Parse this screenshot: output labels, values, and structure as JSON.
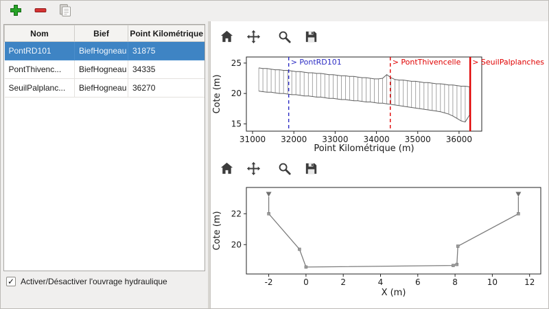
{
  "toolbar": {
    "buttons": [
      {
        "name": "add",
        "icon": "plus-icon"
      },
      {
        "name": "remove",
        "icon": "minus-icon"
      },
      {
        "name": "paste",
        "icon": "paste-icon"
      }
    ]
  },
  "table": {
    "columns": [
      "Nom",
      "Bief",
      "Point Kilométrique"
    ],
    "rows": [
      {
        "nom": "PontRD101",
        "bief": "BiefHogneau",
        "pk": "31875"
      },
      {
        "nom": "PontThivenc...",
        "bief": "BiefHogneau",
        "pk": "34335"
      },
      {
        "nom": "SeuilPalplanc...",
        "bief": "BiefHogneau",
        "pk": "36270"
      }
    ],
    "selected_row": 0,
    "selection_color": "#3e84c4"
  },
  "checkbox": {
    "label": "Activer/Désactiver l'ouvrage hydraulique",
    "checked": true
  },
  "plot_toolbar_icons": [
    "home-icon",
    "pan-icon",
    "zoom-icon",
    "save-icon"
  ],
  "chart_data": [
    {
      "type": "line",
      "title": "",
      "xlabel": "Point Kilométrique (m)",
      "ylabel": "Cote (m)",
      "xlim": [
        30850,
        36550
      ],
      "ylim": [
        13.8,
        26.0
      ],
      "xticks": [
        31000,
        32000,
        33000,
        34000,
        35000,
        36000
      ],
      "yticks": [
        15,
        20,
        25
      ],
      "grid": false,
      "sections": {
        "x": [
          31150,
          31250,
          31350,
          31450,
          31550,
          31650,
          31750,
          31850,
          31950,
          32050,
          32150,
          32250,
          32350,
          32450,
          32550,
          32650,
          32750,
          32850,
          32950,
          33050,
          33150,
          33250,
          33350,
          33450,
          33550,
          33650,
          33750,
          33850,
          33950,
          34050,
          34150,
          34250,
          34350,
          34450,
          34550,
          34650,
          34750,
          34850,
          34950,
          35050,
          35150,
          35250,
          35350,
          35450,
          35550,
          35650,
          35750,
          35850,
          35950,
          36050,
          36150,
          36250
        ],
        "top": [
          24.2,
          24.1,
          24.1,
          24.0,
          23.9,
          23.9,
          23.8,
          23.8,
          23.7,
          23.6,
          23.6,
          23.5,
          23.4,
          23.4,
          23.3,
          23.3,
          23.2,
          23.1,
          23.1,
          23.0,
          22.9,
          22.9,
          22.8,
          22.8,
          22.7,
          22.6,
          22.6,
          22.5,
          22.4,
          22.4,
          22.5,
          23.1,
          22.6,
          22.3,
          22.2,
          22.2,
          22.1,
          22.0,
          22.0,
          21.9,
          21.8,
          21.8,
          21.7,
          21.6,
          21.6,
          21.5,
          21.4,
          21.4,
          21.3,
          21.2,
          21.2,
          21.1
        ],
        "bottom": [
          20.4,
          20.3,
          20.2,
          20.2,
          20.1,
          20.0,
          20.0,
          19.9,
          19.8,
          19.8,
          19.7,
          19.6,
          19.6,
          19.5,
          19.4,
          19.4,
          19.3,
          19.2,
          19.2,
          19.1,
          19.0,
          19.0,
          18.9,
          18.8,
          18.8,
          18.7,
          18.6,
          18.6,
          18.5,
          18.4,
          18.4,
          18.3,
          18.2,
          18.1,
          18.0,
          17.9,
          17.8,
          17.7,
          17.6,
          17.5,
          17.4,
          17.3,
          17.2,
          17.1,
          17.0,
          16.8,
          16.6,
          16.3,
          15.9,
          15.5,
          15.3,
          16.4
        ]
      },
      "markers": [
        {
          "x": 31875,
          "label": "> PontRD101",
          "color": "#2c2cc4",
          "solid": false
        },
        {
          "x": 34335,
          "label": "> PontThivencelle",
          "color": "#e00000",
          "solid": false
        },
        {
          "x": 36270,
          "label": "> SeuilPalplanches",
          "color": "#e00000",
          "solid": true
        }
      ]
    },
    {
      "type": "line",
      "title": "",
      "xlabel": "X (m)",
      "ylabel": "Cote (m)",
      "xlim": [
        -3.2,
        12.6
      ],
      "ylim": [
        18.1,
        23.7
      ],
      "xticks": [
        -2,
        0,
        2,
        4,
        6,
        8,
        10,
        12
      ],
      "yticks": [
        20,
        22
      ],
      "grid": false,
      "line_color": "#7c7c7c",
      "points": {
        "x": [
          -2,
          -2,
          -0.35,
          0,
          7.9,
          8.1,
          8.15,
          11.4,
          11.4
        ],
        "y": [
          23.1,
          22.0,
          19.7,
          18.55,
          18.65,
          18.72,
          19.9,
          22.0,
          23.1
        ]
      }
    }
  ]
}
